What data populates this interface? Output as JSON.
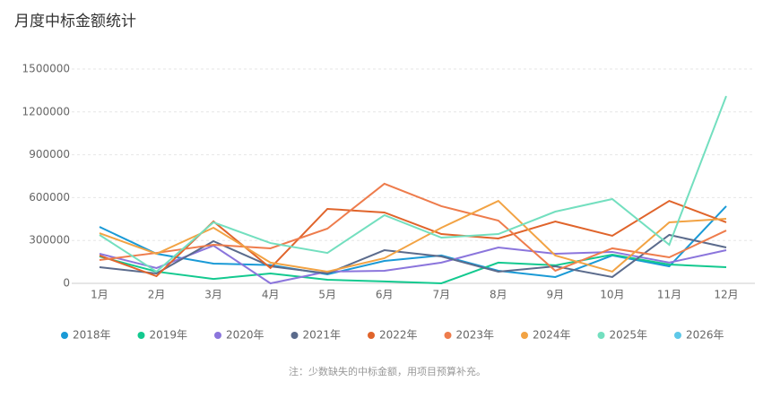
{
  "chart_data": {
    "type": "line",
    "title": "月度中标金额统计",
    "categories": [
      "1月",
      "2月",
      "3月",
      "4月",
      "5月",
      "6月",
      "7月",
      "8月",
      "9月",
      "10月",
      "11月",
      "12月"
    ],
    "ylim": [
      0,
      1500000
    ],
    "yticks": [
      0,
      300000,
      600000,
      900000,
      1200000,
      1500000
    ],
    "grid": true,
    "legend": "bottom",
    "note": "注：少数缺失的中标金额，用项目预算补充。",
    "series": [
      {
        "name": "2018年",
        "color": "#1a9ad6",
        "values": [
          395000,
          207000,
          138000,
          128000,
          63000,
          157000,
          195000,
          88000,
          44000,
          195000,
          119000,
          540000
        ]
      },
      {
        "name": "2019年",
        "color": "#13c98f",
        "values": [
          188000,
          82000,
          31000,
          69000,
          25000,
          13000,
          0,
          145000,
          126000,
          201000,
          132000,
          113000
        ]
      },
      {
        "name": "2020年",
        "color": "#8b75dc",
        "values": [
          207000,
          107000,
          264000,
          0,
          82000,
          88000,
          145000,
          251000,
          207000,
          220000,
          145000,
          232000
        ]
      },
      {
        "name": "2021年",
        "color": "#5b6b8c",
        "values": [
          113000,
          69000,
          295000,
          119000,
          69000,
          232000,
          188000,
          82000,
          119000,
          44000,
          339000,
          251000
        ]
      },
      {
        "name": "2022年",
        "color": "#e0642b",
        "values": [
          195000,
          50000,
          433000,
          107000,
          521000,
          496000,
          345000,
          314000,
          433000,
          333000,
          577000,
          427000
        ]
      },
      {
        "name": "2023年",
        "color": "#ee7c4c",
        "values": [
          163000,
          213000,
          270000,
          245000,
          383000,
          697000,
          540000,
          439000,
          88000,
          245000,
          182000,
          370000
        ]
      },
      {
        "name": "2024年",
        "color": "#f2a344",
        "values": [
          351000,
          207000,
          389000,
          145000,
          82000,
          176000,
          389000,
          577000,
          195000,
          82000,
          427000,
          452000
        ]
      },
      {
        "name": "2025年",
        "color": "#73dfbf",
        "values": [
          339000,
          82000,
          427000,
          282000,
          213000,
          477000,
          320000,
          345000,
          502000,
          590000,
          270000,
          1311000
        ]
      },
      {
        "name": "2026年",
        "color": "#5ec8e8",
        "values": [
          null,
          null,
          null,
          null,
          null,
          null,
          null,
          null,
          null,
          null,
          null,
          null
        ]
      }
    ]
  }
}
